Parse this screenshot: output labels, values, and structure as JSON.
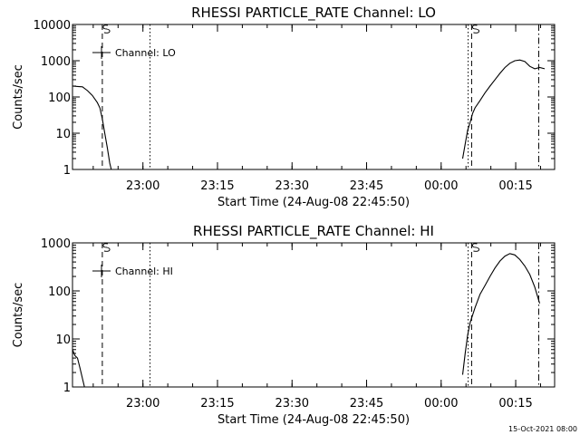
{
  "footer": {
    "timestamp": "15-Oct-2021 08:00"
  },
  "chart_data": [
    {
      "type": "line",
      "title": "RHESSI PARTICLE_RATE Channel: LO",
      "xlabel": "Start Time (24-Aug-08 22:45:50)",
      "ylabel": "Counts/sec",
      "y_scale": "log",
      "ylim": [
        1,
        10000
      ],
      "y_ticks": [
        1,
        10,
        100,
        1000,
        10000
      ],
      "y_tick_labels": [
        "1",
        "10",
        "100",
        "1000",
        "10000"
      ],
      "xlim_minutes": [
        0,
        97
      ],
      "x_ticks_minutes": [
        14.17,
        29.17,
        44.17,
        59.17,
        74.17,
        89.17
      ],
      "x_tick_labels": [
        "23:00",
        "23:15",
        "23:30",
        "23:45",
        "00:00",
        "00:15"
      ],
      "legend": {
        "label": "Channel: LO",
        "position": "top-left"
      },
      "markers": [
        {
          "type": "dashed",
          "x_minutes": 6.0
        },
        {
          "type": "dotted",
          "x_minutes": 15.6
        },
        {
          "type": "dotted",
          "x_minutes": 79.6
        },
        {
          "type": "dashed",
          "x_minutes": 80.3
        },
        {
          "type": "dashdot",
          "x_minutes": 93.8
        }
      ],
      "series": [
        {
          "segments": [
            [
              [
                0,
                200
              ],
              [
                1,
                195
              ],
              [
                2,
                190
              ],
              [
                3,
                150
              ],
              [
                4,
                110
              ],
              [
                5,
                70
              ],
              [
                5.5,
                50
              ],
              [
                6,
                25
              ],
              [
                6.5,
                10
              ],
              [
                7,
                4
              ],
              [
                7.5,
                1.5
              ],
              [
                7.8,
                1
              ]
            ],
            [
              [
                78.5,
                2
              ],
              [
                79,
                5
              ],
              [
                79.5,
                12
              ],
              [
                80,
                20
              ],
              [
                80.5,
                35
              ],
              [
                81,
                50
              ],
              [
                82,
                80
              ],
              [
                83,
                130
              ],
              [
                84,
                200
              ],
              [
                85,
                300
              ],
              [
                86,
                450
              ],
              [
                87,
                650
              ],
              [
                88,
                850
              ],
              [
                89,
                1000
              ],
              [
                90,
                1050
              ],
              [
                91,
                950
              ],
              [
                92,
                700
              ],
              [
                93,
                600
              ],
              [
                94,
                650
              ],
              [
                95,
                600
              ]
            ]
          ]
        }
      ]
    },
    {
      "type": "line",
      "title": "RHESSI PARTICLE_RATE Channel: HI",
      "xlabel": "Start Time (24-Aug-08 22:45:50)",
      "ylabel": "Counts/sec",
      "y_scale": "log",
      "ylim": [
        1,
        1000
      ],
      "y_ticks": [
        1,
        10,
        100,
        1000
      ],
      "y_tick_labels": [
        "1",
        "10",
        "100",
        "1000"
      ],
      "xlim_minutes": [
        0,
        97
      ],
      "x_ticks_minutes": [
        14.17,
        29.17,
        44.17,
        59.17,
        74.17,
        89.17
      ],
      "x_tick_labels": [
        "23:00",
        "23:15",
        "23:30",
        "23:45",
        "00:00",
        "00:15"
      ],
      "legend": {
        "label": "Channel: HI",
        "position": "top-left"
      },
      "markers": [
        {
          "type": "dashed",
          "x_minutes": 6.0
        },
        {
          "type": "dotted",
          "x_minutes": 15.6
        },
        {
          "type": "dotted",
          "x_minutes": 79.6
        },
        {
          "type": "dashed",
          "x_minutes": 80.3
        },
        {
          "type": "dashdot",
          "x_minutes": 93.8
        }
      ],
      "series": [
        {
          "segments": [
            [
              [
                0,
                6
              ],
              [
                0.5,
                4.5
              ],
              [
                1,
                4
              ],
              [
                1.5,
                2.5
              ],
              [
                2,
                1.5
              ],
              [
                2.4,
                1
              ]
            ],
            [
              [
                78.5,
                1.8
              ],
              [
                79,
                5
              ],
              [
                79.5,
                12
              ],
              [
                80,
                22
              ],
              [
                81,
                45
              ],
              [
                82,
                85
              ],
              [
                83,
                130
              ],
              [
                84,
                200
              ],
              [
                85,
                300
              ],
              [
                86,
                420
              ],
              [
                87,
                530
              ],
              [
                88,
                600
              ],
              [
                89,
                560
              ],
              [
                90,
                450
              ],
              [
                91,
                330
              ],
              [
                92,
                220
              ],
              [
                93,
                120
              ],
              [
                94,
                55
              ]
            ]
          ]
        }
      ]
    }
  ]
}
